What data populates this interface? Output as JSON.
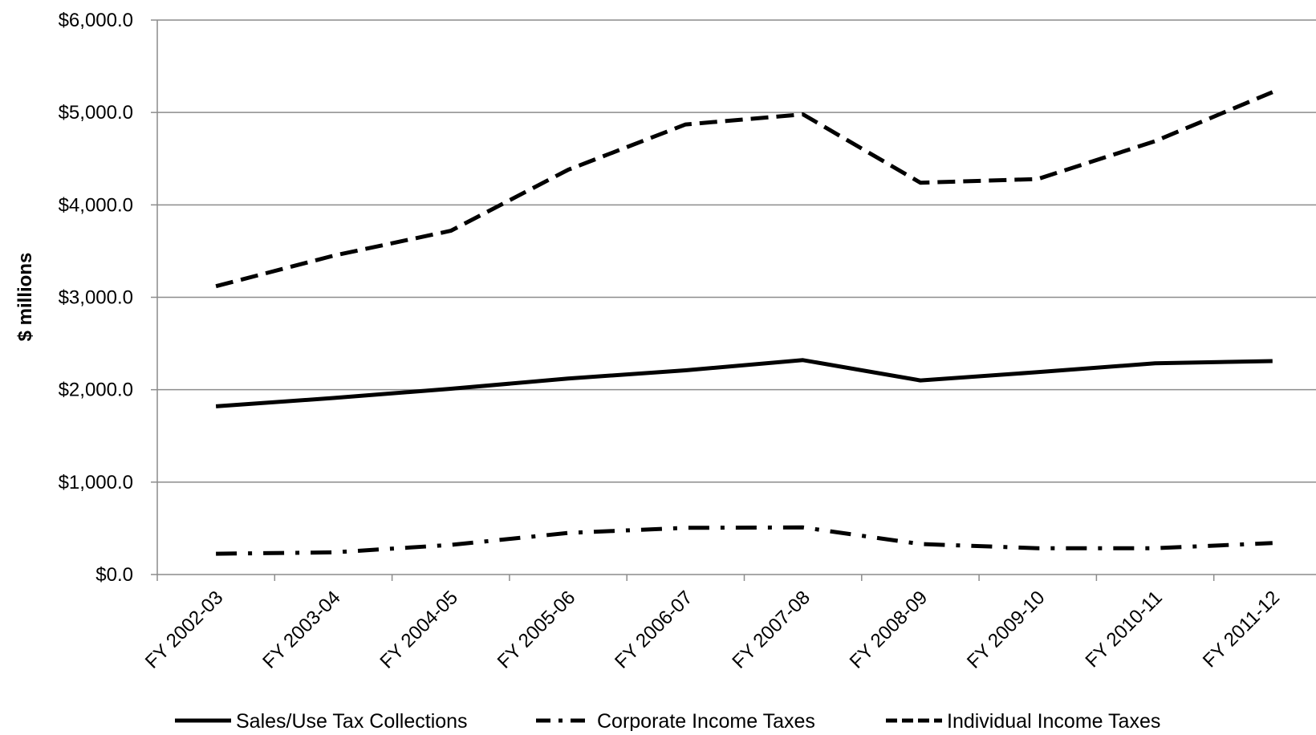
{
  "chart_data": {
    "type": "line",
    "title": "",
    "xlabel": "",
    "ylabel": "$ millions",
    "ylim": [
      0,
      6000
    ],
    "ytick_step": 1000,
    "ytick_labels": [
      "$0.0",
      "$1,000.0",
      "$2,000.0",
      "$3,000.0",
      "$4,000.0",
      "$5,000.0",
      "$6,000.0"
    ],
    "grid": "horizontal",
    "legend_position": "bottom",
    "categories": [
      "FY 2002-03",
      "FY 2003-04",
      "FY 2004-05",
      "FY 2005-06",
      "FY 2006-07",
      "FY 2007-08",
      "FY 2008-09",
      "FY 2009-10",
      "FY 2010-11",
      "FY 2011-12"
    ],
    "series": [
      {
        "name": "Sales/Use Tax Collections",
        "line_style": "solid",
        "color": "#000000",
        "values": [
          1820,
          1910,
          2010,
          2120,
          2210,
          2320,
          2100,
          2190,
          2285,
          2310
        ]
      },
      {
        "name": "Corporate Income Taxes",
        "line_style": "dash-dot",
        "color": "#000000",
        "values": [
          225,
          240,
          320,
          450,
          505,
          510,
          330,
          285,
          285,
          340
        ]
      },
      {
        "name": "Individual Income Taxes",
        "line_style": "dashed",
        "color": "#000000",
        "values": [
          3120,
          3450,
          3720,
          4380,
          4870,
          4980,
          4240,
          4280,
          4690,
          5220
        ]
      }
    ]
  }
}
